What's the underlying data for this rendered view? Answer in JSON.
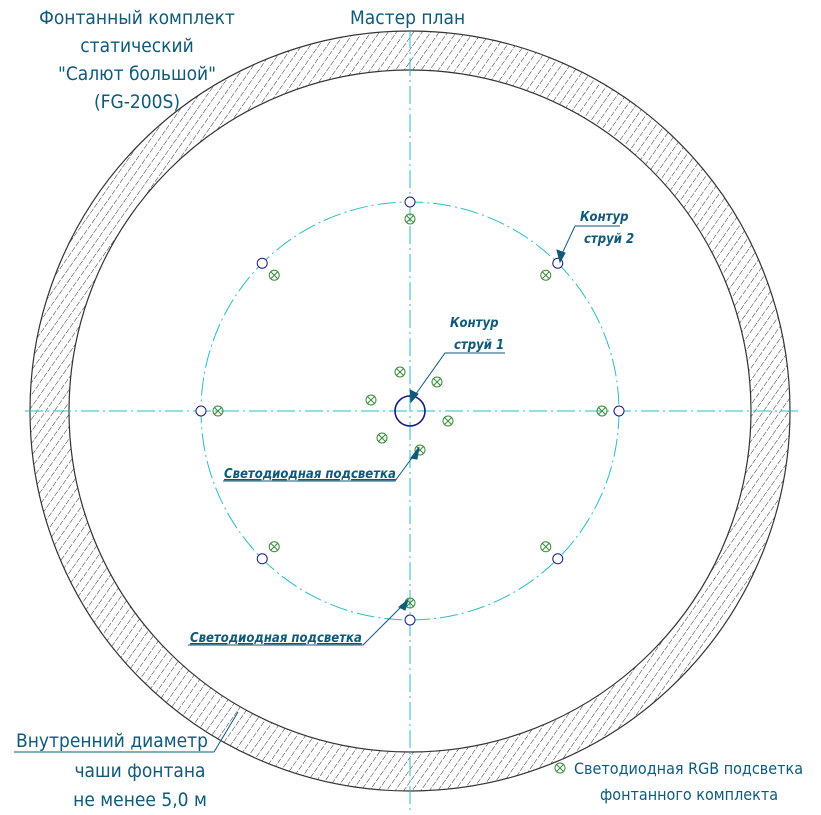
{
  "title_block": {
    "lines": [
      "Фонтанный комплект",
      "статический",
      "\"Салют большой\"",
      "(FG-200S)"
    ]
  },
  "plan_title": "Мастер план",
  "labels": {
    "jets_contour_2": [
      "Контур",
      "струй 2"
    ],
    "jets_contour_1": [
      "Контур",
      "струй 1"
    ],
    "led_lighting_upper": "Светодиодная подсветка",
    "led_lighting_lower": "Светодиодная подсветка",
    "inner_diameter": [
      "Внутренний диаметр",
      "чаши фонтана",
      "не менее 5,0 м"
    ],
    "legend": [
      "Светодиодная RGB подсветка",
      "фонтанного комплекта"
    ]
  },
  "colors": {
    "text": "#0e5a78",
    "axis": "#2bbdc8",
    "jet": "#1a1a80",
    "led": "#3a8a3a",
    "wall": "#333333"
  },
  "icons": {
    "jet_nozzle": "circle-icon",
    "led": "circled-cross-icon"
  }
}
